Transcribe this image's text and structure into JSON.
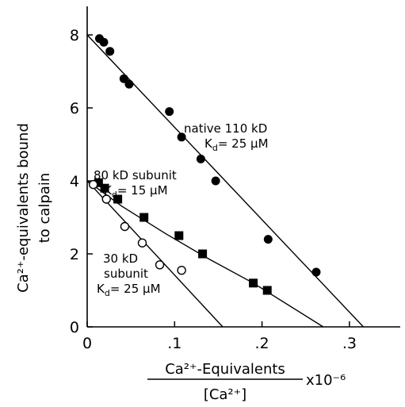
{
  "chart_data": {
    "type": "scatter",
    "title": "",
    "ylabel_line1": "Ca²⁺-equivalents bound",
    "ylabel_line2": "to calpain",
    "xlabel_numerator": "Ca²⁺-Equivalents",
    "xlabel_denominator": "[Ca²⁺]",
    "xlabel_multiplier": "x10⁻⁶",
    "xlim": [
      0,
      0.35
    ],
    "ylim": [
      0,
      9
    ],
    "x_ticks": [
      0,
      0.1,
      0.2,
      0.3
    ],
    "x_tick_labels": [
      "0",
      ".1",
      ".2",
      ".3"
    ],
    "y_ticks": [
      0,
      2,
      4,
      6,
      8
    ],
    "y_tick_labels": [
      "0",
      "2",
      "4",
      "6",
      "8"
    ],
    "grid": false,
    "series": [
      {
        "marker": "filled-circle",
        "points": [
          [
            0.014,
            7.9
          ],
          [
            0.019,
            7.8
          ],
          [
            0.026,
            7.55
          ],
          [
            0.042,
            6.8
          ],
          [
            0.048,
            6.65
          ],
          [
            0.094,
            5.9
          ],
          [
            0.108,
            5.2
          ],
          [
            0.13,
            4.6
          ],
          [
            0.147,
            4.0
          ],
          [
            0.207,
            2.4
          ],
          [
            0.262,
            1.5
          ]
        ],
        "fit": [
          [
            0,
            8.0
          ],
          [
            0.316,
            0
          ]
        ]
      },
      {
        "marker": "filled-square",
        "points": [
          [
            0.013,
            3.95
          ],
          [
            0.02,
            3.8
          ],
          [
            0.035,
            3.5
          ],
          [
            0.065,
            3.0
          ],
          [
            0.105,
            2.5
          ],
          [
            0.132,
            2.0
          ],
          [
            0.19,
            1.2
          ],
          [
            0.206,
            1.0
          ]
        ],
        "fit": [
          [
            0,
            4.0
          ],
          [
            0.04,
            3.3
          ],
          [
            0.09,
            2.55
          ],
          [
            0.14,
            1.85
          ],
          [
            0.19,
            1.2
          ],
          [
            0.27,
            0
          ]
        ]
      },
      {
        "marker": "open-circle",
        "points": [
          [
            0.007,
            3.9
          ],
          [
            0.022,
            3.5
          ],
          [
            0.043,
            2.75
          ],
          [
            0.063,
            2.3
          ],
          [
            0.083,
            1.7
          ],
          [
            0.108,
            1.55
          ]
        ],
        "fit": [
          [
            0,
            4.0
          ],
          [
            0.155,
            0
          ]
        ]
      }
    ],
    "annotations": [
      {
        "line1": "native 110 kD",
        "line2": "K",
        "sub": "d",
        "rest": "= 25 μM"
      },
      {
        "line1": "80 kD subunit",
        "line2": "K",
        "sub": "d",
        "rest": "= 15 μM"
      },
      {
        "line1": "30 kD",
        "line1b": "subunit",
        "line2": "K",
        "sub": "d",
        "rest": "= 25 μM"
      }
    ]
  }
}
